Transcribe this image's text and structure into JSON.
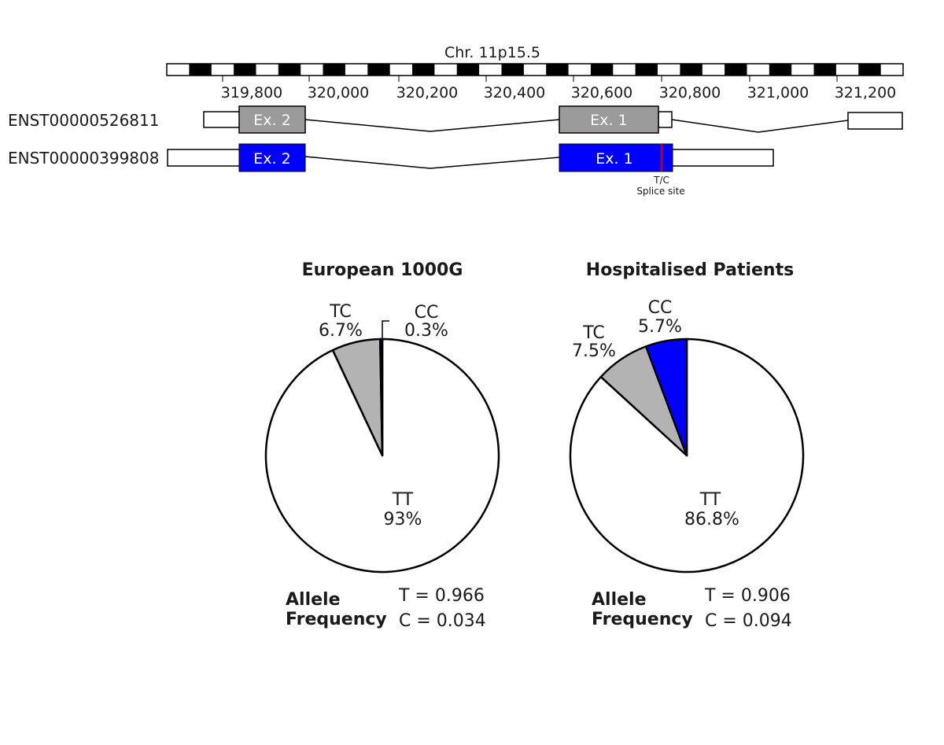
{
  "colors": {
    "exon_gray": "#9b9b9b",
    "exon_blue": "#0000ff",
    "tc_gray": "#b3b3b3",
    "cc_blue": "#0000ff",
    "tt_white": "#ffffff",
    "splice_red": "#cc0000"
  },
  "gene_track": {
    "chromosome_label": "Chr. 11p15.5",
    "ticks": [
      "319,800",
      "320,000",
      "320,200",
      "320,400",
      "320,600",
      "320,800",
      "321,000",
      "321,200"
    ],
    "transcripts": [
      {
        "id": "ENST00000526811",
        "exons": [
          {
            "label": "Ex. 2",
            "color": "gray"
          },
          {
            "label": "Ex. 1",
            "color": "gray"
          }
        ]
      },
      {
        "id": "ENST00000399808",
        "exons": [
          {
            "label": "Ex. 2",
            "color": "blue"
          },
          {
            "label": "Ex. 1",
            "color": "blue"
          }
        ]
      }
    ],
    "splice_site": {
      "allele": "T/C",
      "label": "Splice site"
    }
  },
  "chart_data": [
    {
      "type": "pie",
      "title": "European 1000G",
      "slices": [
        {
          "name": "TT",
          "value": 93,
          "display": "93%"
        },
        {
          "name": "TC",
          "value": 6.7,
          "display": "6.7%"
        },
        {
          "name": "CC",
          "value": 0.3,
          "display": "0.3%"
        }
      ],
      "allele_frequency": {
        "label_line1": "Allele",
        "label_line2": "Frequency",
        "T": "T = 0.966",
        "C": "C = 0.034"
      }
    },
    {
      "type": "pie",
      "title": "Hospitalised Patients",
      "slices": [
        {
          "name": "TT",
          "value": 86.8,
          "display": "86.8%"
        },
        {
          "name": "TC",
          "value": 7.5,
          "display": "7.5%"
        },
        {
          "name": "CC",
          "value": 5.7,
          "display": "5.7%"
        }
      ],
      "allele_frequency": {
        "label_line1": "Allele",
        "label_line2": "Frequency",
        "T": "T = 0.906",
        "C": "C = 0.094"
      }
    }
  ]
}
